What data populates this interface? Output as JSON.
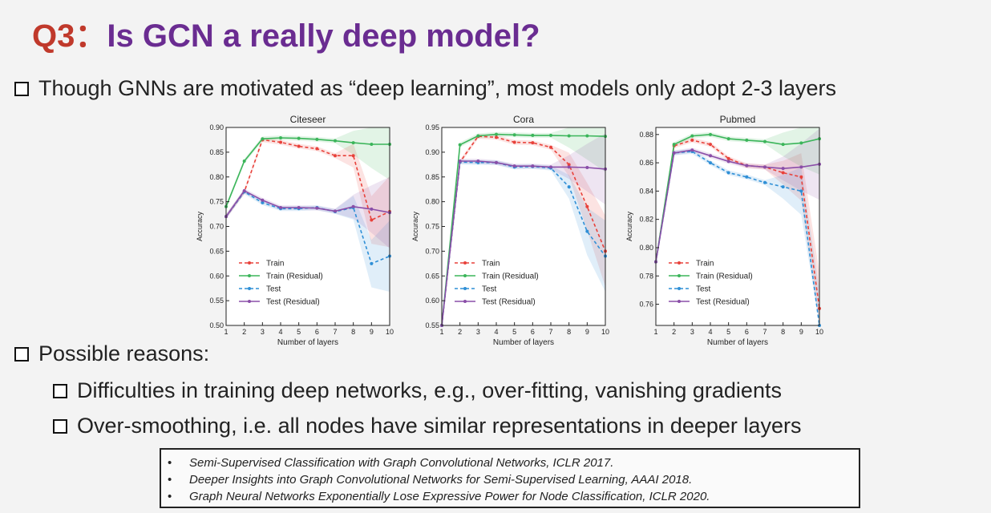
{
  "slide": {
    "title_prefix": "Q3：",
    "title_text": "Is GCN a really deep model?",
    "bullets": [
      "Though GNNs are motivated as “deep learning”, most models only adopt 2-3 layers",
      "Possible reasons:",
      "Difficulties in training deep networks, e.g., over-fitting, vanishing gradients",
      "Over-smoothing, i.e. all nodes have similar representations in deeper layers"
    ],
    "references": [
      "Semi-Supervised Classification with Graph Convolutional Networks, ICLR 2017.",
      "Deeper Insights into Graph Convolutional Networks for Semi-Supervised Learning, AAAI 2018.",
      "Graph Neural Networks Exponentially Lose Expressive Power for Node Classification, ICLR 2020."
    ],
    "reference_marker": "•"
  },
  "chart_data": [
    {
      "type": "line",
      "title": "Citeseer",
      "xlabel": "Number of layers",
      "ylabel": "Accuracy",
      "x": [
        1,
        2,
        3,
        4,
        5,
        6,
        7,
        8,
        9,
        10
      ],
      "xticks": [
        1,
        2,
        3,
        4,
        5,
        6,
        7,
        8,
        9,
        10
      ],
      "ylim": [
        0.5,
        0.9
      ],
      "yticks": [
        0.5,
        0.55,
        0.6,
        0.65,
        0.7,
        0.75,
        0.8,
        0.85,
        0.9
      ],
      "legend": "lower-left",
      "series": [
        {
          "name": "Train",
          "color": "#e8413a",
          "dashed": true,
          "values": [
            0.72,
            0.77,
            0.875,
            0.87,
            0.862,
            0.857,
            0.843,
            0.843,
            0.713,
            0.73
          ]
        },
        {
          "name": "Train (Residual)",
          "color": "#3bb55a",
          "dashed": false,
          "values": [
            0.74,
            0.832,
            0.877,
            0.879,
            0.878,
            0.876,
            0.873,
            0.869,
            0.866,
            0.866
          ]
        },
        {
          "name": "Test",
          "color": "#2f8fd6",
          "dashed": true,
          "values": [
            0.72,
            0.77,
            0.748,
            0.736,
            0.736,
            0.738,
            0.73,
            0.738,
            0.625,
            0.64
          ]
        },
        {
          "name": "Test (Residual)",
          "color": "#8a4ea8",
          "dashed": false,
          "values": [
            0.72,
            0.772,
            0.753,
            0.738,
            0.738,
            0.737,
            0.731,
            0.74,
            0.735,
            0.728
          ]
        }
      ]
    },
    {
      "type": "line",
      "title": "Cora",
      "xlabel": "Number of layers",
      "ylabel": "Accuracy",
      "x": [
        1,
        2,
        3,
        4,
        5,
        6,
        7,
        8,
        9,
        10
      ],
      "xticks": [
        1,
        2,
        3,
        4,
        5,
        6,
        7,
        8,
        9,
        10
      ],
      "ylim": [
        0.55,
        0.95
      ],
      "yticks": [
        0.55,
        0.6,
        0.65,
        0.7,
        0.75,
        0.8,
        0.85,
        0.9,
        0.95
      ],
      "legend": "lower-left",
      "series": [
        {
          "name": "Train",
          "color": "#e8413a",
          "dashed": true,
          "values": [
            0.55,
            0.88,
            0.932,
            0.93,
            0.92,
            0.919,
            0.91,
            0.875,
            0.79,
            0.7
          ]
        },
        {
          "name": "Train (Residual)",
          "color": "#3bb55a",
          "dashed": false,
          "values": [
            0.55,
            0.915,
            0.933,
            0.936,
            0.935,
            0.934,
            0.934,
            0.933,
            0.933,
            0.932
          ]
        },
        {
          "name": "Test",
          "color": "#2f8fd6",
          "dashed": true,
          "values": [
            0.55,
            0.88,
            0.879,
            0.879,
            0.87,
            0.871,
            0.868,
            0.83,
            0.74,
            0.69
          ]
        },
        {
          "name": "Test (Residual)",
          "color": "#8a4ea8",
          "dashed": false,
          "values": [
            0.55,
            0.882,
            0.882,
            0.879,
            0.872,
            0.872,
            0.87,
            0.87,
            0.869,
            0.866
          ]
        }
      ]
    },
    {
      "type": "line",
      "title": "Pubmed",
      "xlabel": "Number of layers",
      "ylabel": "Accuracy",
      "x": [
        1,
        2,
        3,
        4,
        5,
        6,
        7,
        8,
        9,
        10
      ],
      "xticks": [
        1,
        2,
        3,
        4,
        5,
        6,
        7,
        8,
        9,
        10
      ],
      "ylim": [
        0.745,
        0.885
      ],
      "yticks": [
        0.76,
        0.78,
        0.8,
        0.82,
        0.84,
        0.86,
        0.88
      ],
      "legend": "lower-left",
      "series": [
        {
          "name": "Train",
          "color": "#e8413a",
          "dashed": true,
          "values": [
            0.79,
            0.872,
            0.876,
            0.873,
            0.863,
            0.858,
            0.857,
            0.853,
            0.85,
            0.757
          ]
        },
        {
          "name": "Train (Residual)",
          "color": "#3bb55a",
          "dashed": false,
          "values": [
            0.79,
            0.873,
            0.879,
            0.88,
            0.877,
            0.876,
            0.875,
            0.873,
            0.874,
            0.877
          ]
        },
        {
          "name": "Test",
          "color": "#2f8fd6",
          "dashed": true,
          "values": [
            0.79,
            0.867,
            0.868,
            0.86,
            0.853,
            0.85,
            0.846,
            0.843,
            0.84,
            0.745
          ]
        },
        {
          "name": "Test (Residual)",
          "color": "#8a4ea8",
          "dashed": false,
          "values": [
            0.79,
            0.867,
            0.869,
            0.865,
            0.861,
            0.858,
            0.857,
            0.856,
            0.857,
            0.859
          ]
        }
      ]
    }
  ]
}
